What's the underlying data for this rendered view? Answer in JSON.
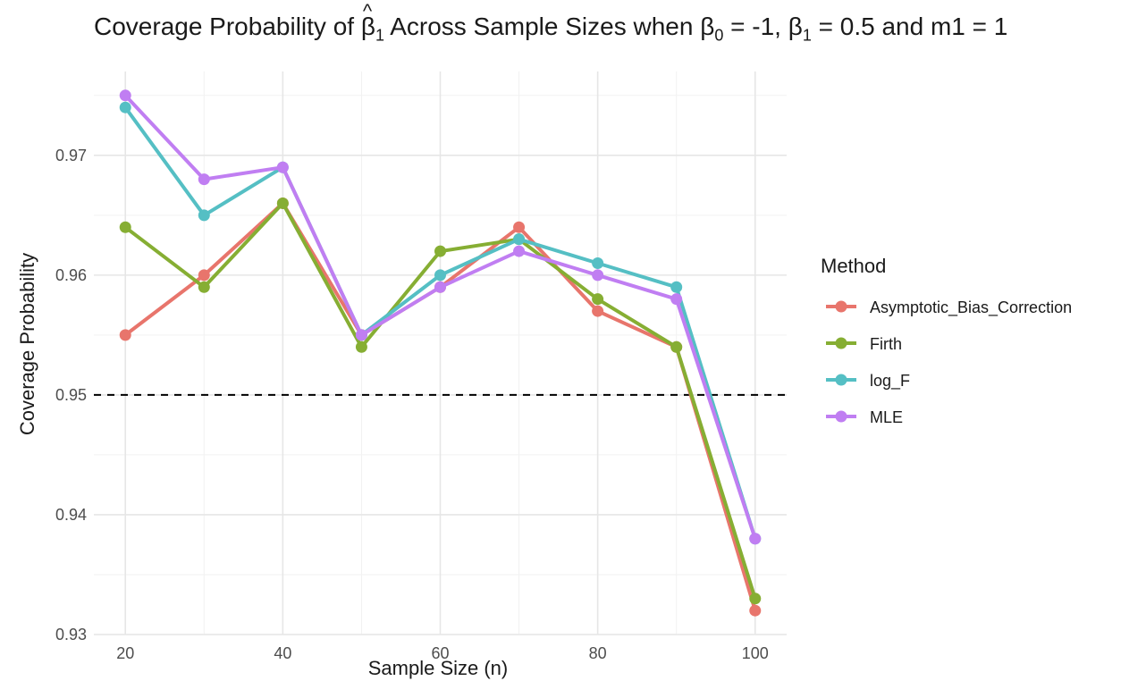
{
  "chart_data": {
    "type": "line",
    "title": {
      "prefix": "Coverage Probability of ",
      "beta": "β",
      "sub1": "1",
      "middle": " Across Sample Sizes when ",
      "beta0": "β",
      "sub0": "0",
      "eq0": " = -1, ",
      "beta1": "β",
      "sub1b": "1",
      "eq1": " = 0.5 and m1 = 1"
    },
    "xlabel": "Sample Size (n)",
    "ylabel": "Coverage Probability",
    "xlim": [
      16,
      104
    ],
    "ylim": [
      0.93,
      0.977
    ],
    "x_ticks": [
      20,
      40,
      60,
      80,
      100
    ],
    "y_ticks": [
      0.93,
      0.94,
      0.95,
      0.96,
      0.97
    ],
    "y_tick_labels": [
      "0.93",
      "0.94",
      "0.95",
      "0.96",
      "0.97"
    ],
    "x_tick_labels": [
      "20",
      "40",
      "60",
      "80",
      "100"
    ],
    "reference_line": {
      "y": 0.95,
      "style": "dashed",
      "color": "#000000"
    },
    "legend": {
      "title": "Method",
      "placement": "right"
    },
    "x": [
      20,
      30,
      40,
      50,
      60,
      70,
      80,
      90,
      100
    ],
    "series": [
      {
        "name": "Asymptotic_Bias_Correction",
        "color": "#E8756C",
        "values": [
          0.955,
          0.96,
          0.966,
          0.955,
          0.959,
          0.964,
          0.957,
          0.954,
          0.932
        ]
      },
      {
        "name": "Firth",
        "color": "#86AE33",
        "values": [
          0.964,
          0.959,
          0.966,
          0.954,
          0.962,
          0.963,
          0.958,
          0.954,
          0.933
        ]
      },
      {
        "name": "log_F",
        "color": "#55BFC4",
        "values": [
          0.974,
          0.965,
          0.969,
          0.955,
          0.96,
          0.963,
          0.961,
          0.959,
          0.938
        ]
      },
      {
        "name": "MLE",
        "color": "#C07EF2",
        "values": [
          0.975,
          0.968,
          0.969,
          0.955,
          0.959,
          0.962,
          0.96,
          0.958,
          0.938
        ]
      }
    ]
  }
}
